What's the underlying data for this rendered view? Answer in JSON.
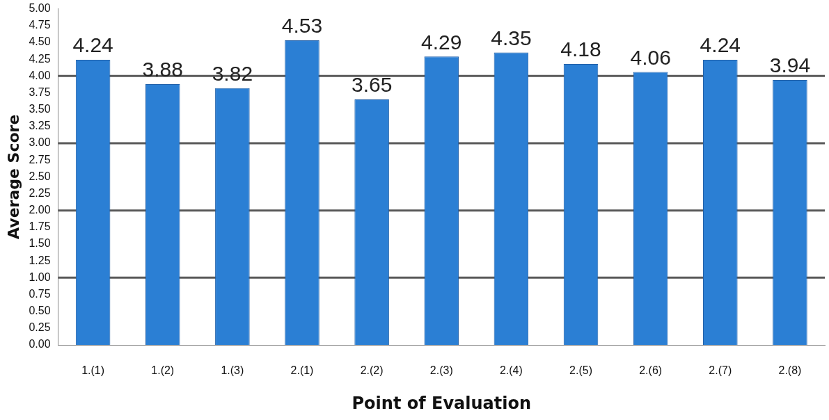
{
  "chart_data": {
    "type": "bar",
    "xlabel": "Point of Evaluation",
    "ylabel": "Average Score",
    "categories": [
      "1.(1)",
      "1.(2)",
      "1.(3)",
      "2.(1)",
      "2.(2)",
      "2.(3)",
      "2.(4)",
      "2.(5)",
      "2.(6)",
      "2.(7)",
      "2.(8)"
    ],
    "values": [
      4.24,
      3.88,
      3.82,
      4.53,
      3.65,
      4.29,
      4.35,
      4.18,
      4.06,
      4.24,
      3.94
    ],
    "color": "#2b7fd4",
    "ylim": [
      0,
      5
    ],
    "yticks": [
      {
        "value": 0,
        "label": "0.00"
      },
      {
        "value": 0.25,
        "label": "0.25"
      },
      {
        "value": 0.5,
        "label": "0.50"
      },
      {
        "value": 0.75,
        "label": "0.75"
      },
      {
        "value": 1,
        "label": "1.00"
      },
      {
        "value": 1.25,
        "label": "1.25"
      },
      {
        "value": 1.5,
        "label": "1.50"
      },
      {
        "value": 1.75,
        "label": "1.75"
      },
      {
        "value": 2,
        "label": "2.00"
      },
      {
        "value": 2.25,
        "label": "2.25"
      },
      {
        "value": 2.5,
        "label": "2.50"
      },
      {
        "value": 2.75,
        "label": "2.75"
      },
      {
        "value": 3,
        "label": "3.00"
      },
      {
        "value": 3.25,
        "label": "3.25"
      },
      {
        "value": 3.5,
        "label": "3.50"
      },
      {
        "value": 3.75,
        "label": "3.75"
      },
      {
        "value": 4,
        "label": "4.00"
      },
      {
        "value": 4.25,
        "label": "4.25"
      },
      {
        "value": 4.5,
        "label": "4.50"
      },
      {
        "value": 4.75,
        "label": "4.75"
      },
      {
        "value": 5,
        "label": "5.00"
      }
    ],
    "ref_lines": [
      {
        "axis": "y",
        "value": 1,
        "color": "#595959"
      },
      {
        "axis": "y",
        "value": 2,
        "color": "#595959"
      },
      {
        "axis": "y",
        "value": 3,
        "color": "#595959"
      },
      {
        "axis": "y",
        "value": 4,
        "color": "#595959"
      }
    ],
    "data_labels": true
  }
}
